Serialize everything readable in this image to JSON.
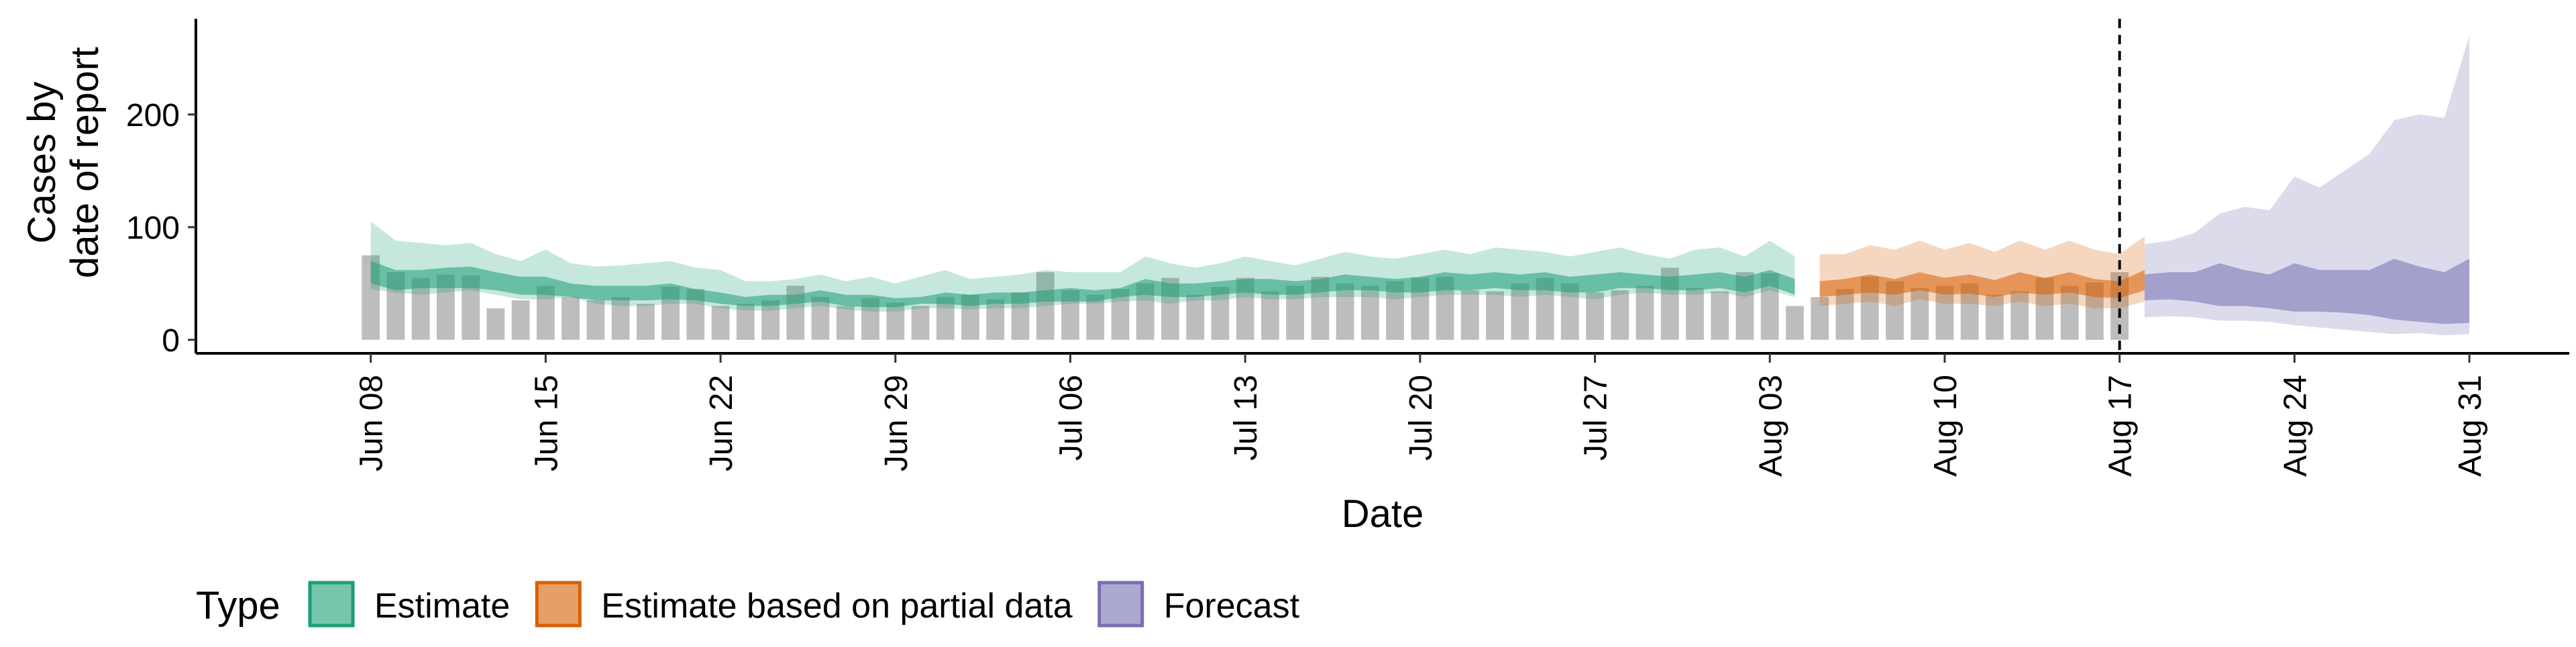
{
  "chart_data": {
    "type": "area",
    "xlabel": "Date",
    "ylabel_lines": [
      "Cases by",
      "date of report"
    ],
    "ylim": [
      -12,
      285
    ],
    "yticks": [
      0,
      100,
      200
    ],
    "x_start": "2020-06-08",
    "xlim_days": [
      -7,
      88
    ],
    "x_ticks": [
      {
        "label": "Jun 08",
        "day": 0
      },
      {
        "label": "Jun 15",
        "day": 7
      },
      {
        "label": "Jun 22",
        "day": 14
      },
      {
        "label": "Jun 29",
        "day": 21
      },
      {
        "label": "Jul 06",
        "day": 28
      },
      {
        "label": "Jul 13",
        "day": 35
      },
      {
        "label": "Jul 20",
        "day": 42
      },
      {
        "label": "Jul 27",
        "day": 49
      },
      {
        "label": "Aug 03",
        "day": 56
      },
      {
        "label": "Aug 10",
        "day": 63
      },
      {
        "label": "Aug 17",
        "day": 70
      },
      {
        "label": "Aug 24",
        "day": 77
      },
      {
        "label": "Aug 31",
        "day": 84
      }
    ],
    "vline_day": 70,
    "reported_cases": [
      75,
      60,
      55,
      58,
      57,
      28,
      35,
      48,
      38,
      35,
      38,
      32,
      47,
      45,
      30,
      32,
      35,
      48,
      38,
      30,
      37,
      33,
      30,
      38,
      40,
      36,
      42,
      60,
      44,
      40,
      45,
      50,
      55,
      40,
      47,
      55,
      43,
      48,
      56,
      50,
      48,
      52,
      55,
      56,
      44,
      43,
      50,
      55,
      50,
      42,
      44,
      48,
      64,
      46,
      43,
      60,
      59,
      30,
      38,
      45,
      56,
      52,
      46,
      48,
      50,
      40,
      43,
      55,
      48,
      51,
      60
    ],
    "legend_title": "Type",
    "series": [
      {
        "name": "Estimate",
        "color": "#1b9e77",
        "day_start": 0,
        "outer_upper": [
          105,
          88,
          86,
          84,
          86,
          76,
          70,
          80,
          68,
          65,
          66,
          68,
          70,
          64,
          62,
          52,
          52,
          54,
          58,
          52,
          56,
          50,
          56,
          62,
          54,
          56,
          58,
          62,
          60,
          60,
          60,
          74,
          68,
          64,
          68,
          74,
          70,
          66,
          72,
          78,
          74,
          72,
          76,
          80,
          76,
          82,
          80,
          78,
          74,
          78,
          82,
          76,
          72,
          80,
          82,
          74,
          88,
          74
        ],
        "outer_lower": [
          45,
          42,
          40,
          42,
          44,
          40,
          36,
          36,
          38,
          32,
          30,
          30,
          32,
          32,
          28,
          26,
          26,
          28,
          30,
          27,
          25,
          25,
          28,
          28,
          27,
          28,
          28,
          30,
          32,
          32,
          34,
          35,
          32,
          35,
          35,
          38,
          36,
          36,
          38,
          38,
          38,
          36,
          38,
          40,
          40,
          40,
          38,
          40,
          38,
          36,
          40,
          42,
          40,
          40,
          42,
          38,
          44,
          38
        ],
        "inner_upper": [
          70,
          62,
          62,
          64,
          65,
          60,
          56,
          56,
          50,
          48,
          48,
          48,
          50,
          45,
          42,
          38,
          40,
          40,
          44,
          40,
          40,
          37,
          38,
          42,
          40,
          42,
          42,
          44,
          46,
          44,
          46,
          54,
          50,
          50,
          52,
          54,
          54,
          52,
          54,
          58,
          56,
          54,
          56,
          60,
          58,
          60,
          58,
          60,
          56,
          58,
          60,
          58,
          56,
          58,
          60,
          56,
          62,
          54
        ],
        "inner_lower": [
          50,
          44,
          46,
          46,
          46,
          44,
          40,
          40,
          38,
          35,
          35,
          35,
          36,
          35,
          32,
          30,
          30,
          32,
          34,
          30,
          29,
          29,
          32,
          32,
          30,
          32,
          32,
          34,
          34,
          34,
          38,
          40,
          38,
          38,
          40,
          42,
          40,
          40,
          42,
          44,
          44,
          42,
          42,
          44,
          44,
          46,
          44,
          44,
          42,
          42,
          46,
          46,
          44,
          44,
          46,
          42,
          48,
          40
        ]
      },
      {
        "name": "Estimate based on partial data",
        "color": "#d95f02",
        "day_start": 58,
        "outer_upper": [
          76,
          76,
          84,
          80,
          88,
          80,
          86,
          78,
          88,
          80,
          88,
          80,
          76,
          92
        ],
        "outer_lower": [
          30,
          32,
          34,
          30,
          36,
          32,
          32,
          30,
          34,
          30,
          32,
          28,
          28,
          34
        ],
        "inner_upper": [
          52,
          54,
          58,
          54,
          60,
          55,
          58,
          53,
          60,
          55,
          60,
          54,
          52,
          62
        ],
        "inner_lower": [
          38,
          40,
          42,
          40,
          44,
          40,
          41,
          38,
          42,
          40,
          42,
          38,
          37,
          44
        ]
      },
      {
        "name": "Forecast",
        "color": "#7570b3",
        "day_start": 71,
        "outer_upper": [
          85,
          88,
          95,
          112,
          118,
          115,
          145,
          135,
          150,
          165,
          195,
          200,
          197,
          270
        ],
        "outer_lower": [
          20,
          21,
          20,
          17,
          17,
          16,
          13,
          11,
          9,
          7,
          5,
          6,
          4,
          5
        ],
        "inner_upper": [
          58,
          60,
          60,
          68,
          62,
          58,
          68,
          62,
          62,
          62,
          72,
          65,
          60,
          72
        ],
        "inner_lower": [
          35,
          36,
          34,
          30,
          30,
          28,
          25,
          25,
          24,
          22,
          18,
          16,
          14,
          15
        ]
      }
    ]
  }
}
